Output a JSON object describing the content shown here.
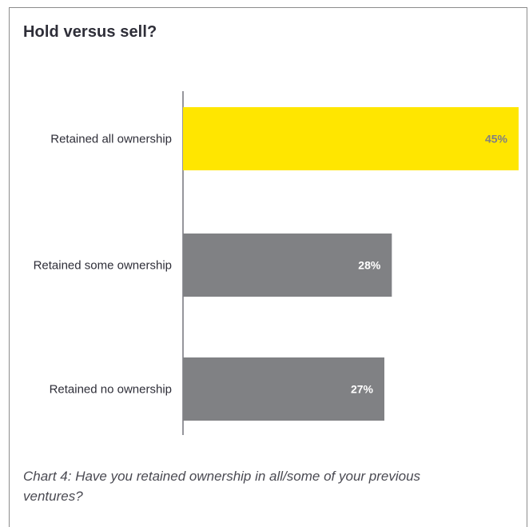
{
  "title": "Hold versus sell?",
  "caption": "Chart 4: Have you retained ownership in all/some of your previous ventures?",
  "colors": {
    "highlight": "#ffe600",
    "bar": "#808184",
    "highlight_label": "#7f7f84",
    "bar_label": "#ffffff"
  },
  "chart_data": {
    "type": "bar",
    "orientation": "horizontal",
    "categories": [
      "Retained all ownership",
      "Retained some ownership",
      "Retained no ownership"
    ],
    "values": [
      45,
      28,
      27
    ],
    "value_labels": [
      "45%",
      "28%",
      "27%"
    ],
    "unit": "%",
    "xlim": [
      0,
      45
    ],
    "grid": false,
    "legend": "none",
    "highlighted_category": "Retained all ownership"
  }
}
